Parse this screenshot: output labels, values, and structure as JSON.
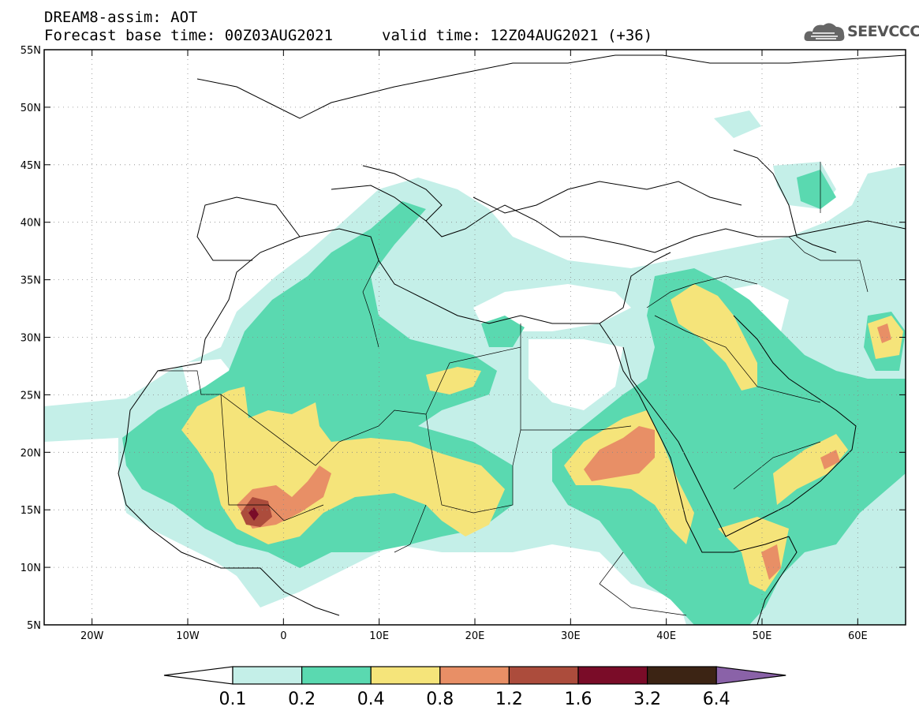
{
  "header": {
    "line1": "DREAM8-assim: AOT",
    "line2": "Forecast base time: 00Z03AUG2021",
    "valid": "valid time: 12Z04AUG2021 (+36)",
    "logo": "SEEVCCC",
    "logo_icon": "cloud-icon"
  },
  "map": {
    "lon_range": [
      -25,
      65
    ],
    "lat_range": [
      5,
      55
    ],
    "lat_labels": [
      "5N",
      "10N",
      "15N",
      "20N",
      "25N",
      "30N",
      "35N",
      "40N",
      "45N",
      "50N",
      "55N"
    ],
    "lat_values": [
      5,
      10,
      15,
      20,
      25,
      30,
      35,
      40,
      45,
      50,
      55
    ],
    "lon_labels": [
      "20W",
      "10W",
      "0",
      "10E",
      "20E",
      "30E",
      "40E",
      "50E",
      "60E"
    ],
    "lon_values": [
      -20,
      -10,
      0,
      10,
      20,
      30,
      40,
      50,
      60
    ],
    "grid": "dotted"
  },
  "colorbar": {
    "labels": [
      "0.1",
      "0.2",
      "0.4",
      "0.8",
      "1.2",
      "1.6",
      "3.2",
      "6.4"
    ],
    "colors": [
      "#ffffff",
      "#c4efe8",
      "#5ad9b0",
      "#f5e47a",
      "#e88f66",
      "#ac4c3c",
      "#7a0c28",
      "#3c2414",
      "#8a62a8"
    ]
  }
}
